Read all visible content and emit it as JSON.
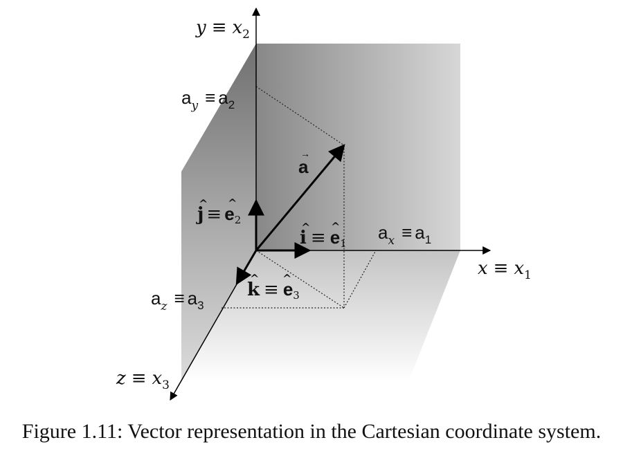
{
  "axes": {
    "y": {
      "name": "y",
      "eq": "≡",
      "sym": "x",
      "sub": "2"
    },
    "x": {
      "name": "x",
      "eq": "≡",
      "sym": "x",
      "sub": "1"
    },
    "z": {
      "name": "z",
      "eq": "≡",
      "sym": "x",
      "sub": "3"
    }
  },
  "components": {
    "ay": {
      "base": "a",
      "sub": "y",
      "eq": "≡",
      "rhs": "a",
      "rhs_sub": "2"
    },
    "ax": {
      "base": "a",
      "sub": "x",
      "eq": "≡",
      "rhs": "a",
      "rhs_sub": "1"
    },
    "az": {
      "base": "a",
      "sub": "z",
      "eq": "≡",
      "rhs": "a",
      "rhs_sub": "3"
    }
  },
  "vector": {
    "symbol": "a",
    "arrow": "→"
  },
  "unit_vectors": {
    "i": {
      "sym": "i",
      "hat": "^",
      "eq": "≡",
      "e": "e",
      "sub": "1"
    },
    "j": {
      "sym": "j",
      "hat": "^",
      "eq": "≡",
      "e": "e",
      "sub": "2"
    },
    "k": {
      "sym": "k",
      "hat": "^",
      "eq": "≡",
      "e": "e",
      "sub": "3"
    }
  },
  "caption": "Figure 1.11: Vector representation in the Cartesian coordinate system."
}
